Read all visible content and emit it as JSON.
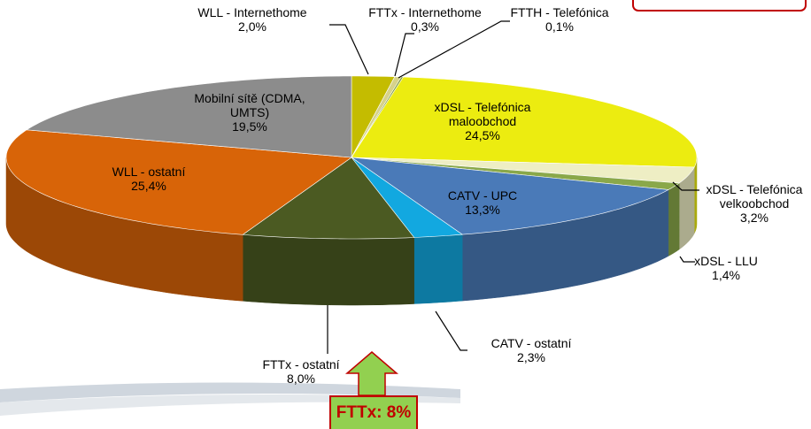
{
  "chart_data": {
    "type": "pie",
    "categories": [
      "WLL - Internethome",
      "FTTx - Internethome",
      "FTTH - Telefónica",
      "xDSL - Telefónica maloobchod",
      "xDSL - Telefónica velkoobchod",
      "xDSL - LLU",
      "CATV - UPC",
      "CATV - ostatní",
      "FTTx - ostatní",
      "WLL - ostatní",
      "Mobilní sítě (CDMA, UMTS)"
    ],
    "values": [
      2.0,
      0.3,
      0.1,
      24.5,
      3.2,
      1.4,
      13.3,
      2.3,
      8.0,
      25.4,
      19.5
    ],
    "value_labels": [
      "2,0%",
      "0,3%",
      "0,1%",
      "24,5%",
      "3,2%",
      "1,4%",
      "13,3%",
      "2,3%",
      "8,0%",
      "25,4%",
      "19,5%"
    ],
    "colors": [
      "#c4bc00",
      "#d6d28a",
      "#7f9a3a",
      "#ecec10",
      "#eeeec4",
      "#8aa84a",
      "#4a7ab8",
      "#12a8e0",
      "#4b5a22",
      "#d86408",
      "#8c8c8c"
    ],
    "annotation": "FTTx: 8%"
  }
}
